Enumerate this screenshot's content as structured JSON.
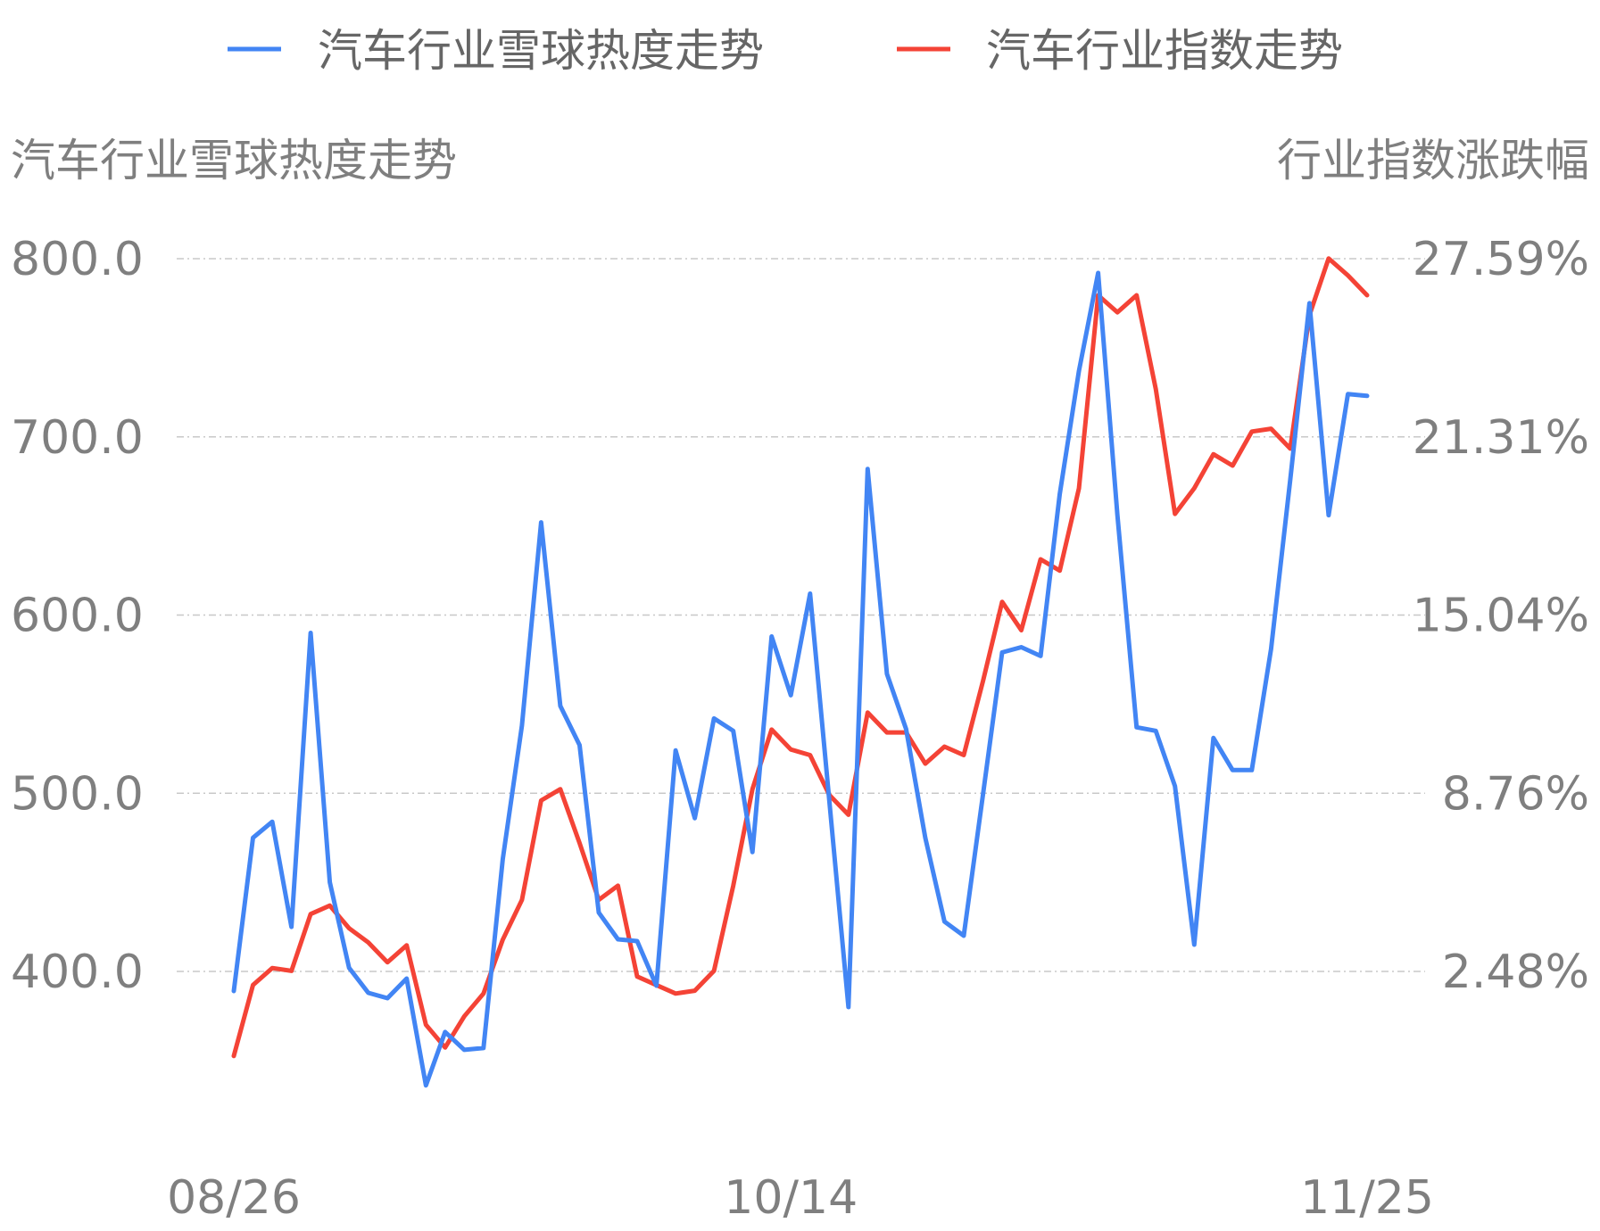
{
  "chart_data": {
    "type": "line",
    "legend": {
      "position": "top-center",
      "entries": [
        {
          "label": "汽车行业雪球热度走势",
          "color": "#4285f4"
        },
        {
          "label": "汽车行业指数走势",
          "color": "#f44336"
        }
      ]
    },
    "y_left": {
      "title": "汽车行业雪球热度走势",
      "ticks": [
        "400.0",
        "500.0",
        "600.0",
        "700.0",
        "800.0"
      ],
      "tick_values": [
        400,
        500,
        600,
        700,
        800
      ],
      "range": [
        310,
        800
      ]
    },
    "y_right": {
      "title": "行业指数涨跌幅",
      "ticks": [
        "2.48%",
        "8.76%",
        "15.04%",
        "21.31%",
        "27.59%"
      ],
      "tick_values": [
        2.48,
        8.76,
        15.04,
        21.31,
        27.59
      ],
      "range": [
        -0.79,
        27.59
      ]
    },
    "x_axis": {
      "ticks": [
        "08/26",
        "10/14",
        "11/25"
      ],
      "tick_positions": [
        0,
        29,
        59
      ]
    },
    "grid": "horizontal-dashed",
    "series": [
      {
        "name": "汽车行业雪球热度走势",
        "color": "#4285f4",
        "axis": "left",
        "values": [
          389,
          475,
          484,
          425,
          590,
          450,
          402,
          388,
          385,
          396,
          336,
          366,
          356,
          357,
          463,
          538,
          652,
          549,
          527,
          433,
          418,
          417,
          392,
          524,
          486,
          542,
          535,
          467,
          588,
          555,
          612,
          496,
          380,
          682,
          567,
          536,
          475,
          428,
          420,
          499,
          579,
          582,
          577,
          668,
          737,
          792,
          656,
          537,
          535,
          504,
          415,
          531,
          513,
          513,
          581,
          676,
          775,
          656,
          724,
          723
        ]
      },
      {
        "name": "汽车行业指数走势",
        "color": "#f44336",
        "axis": "right",
        "values": [
          -0.5,
          2.0,
          2.6,
          2.5,
          4.5,
          4.8,
          4.0,
          3.5,
          2.8,
          3.4,
          0.6,
          -0.2,
          0.9,
          1.7,
          3.6,
          5.0,
          8.5,
          8.9,
          7.0,
          5.0,
          5.5,
          2.3,
          2.0,
          1.7,
          1.8,
          2.5,
          5.5,
          8.9,
          11.0,
          10.3,
          10.1,
          8.7,
          8.0,
          11.6,
          10.9,
          10.9,
          9.8,
          10.4,
          10.1,
          12.7,
          15.5,
          14.5,
          17.0,
          16.6,
          19.5,
          26.3,
          25.7,
          26.3,
          23.0,
          18.6,
          19.5,
          20.7,
          20.3,
          21.5,
          21.6,
          20.9,
          25.6,
          27.6,
          27.0,
          26.3
        ]
      }
    ]
  }
}
